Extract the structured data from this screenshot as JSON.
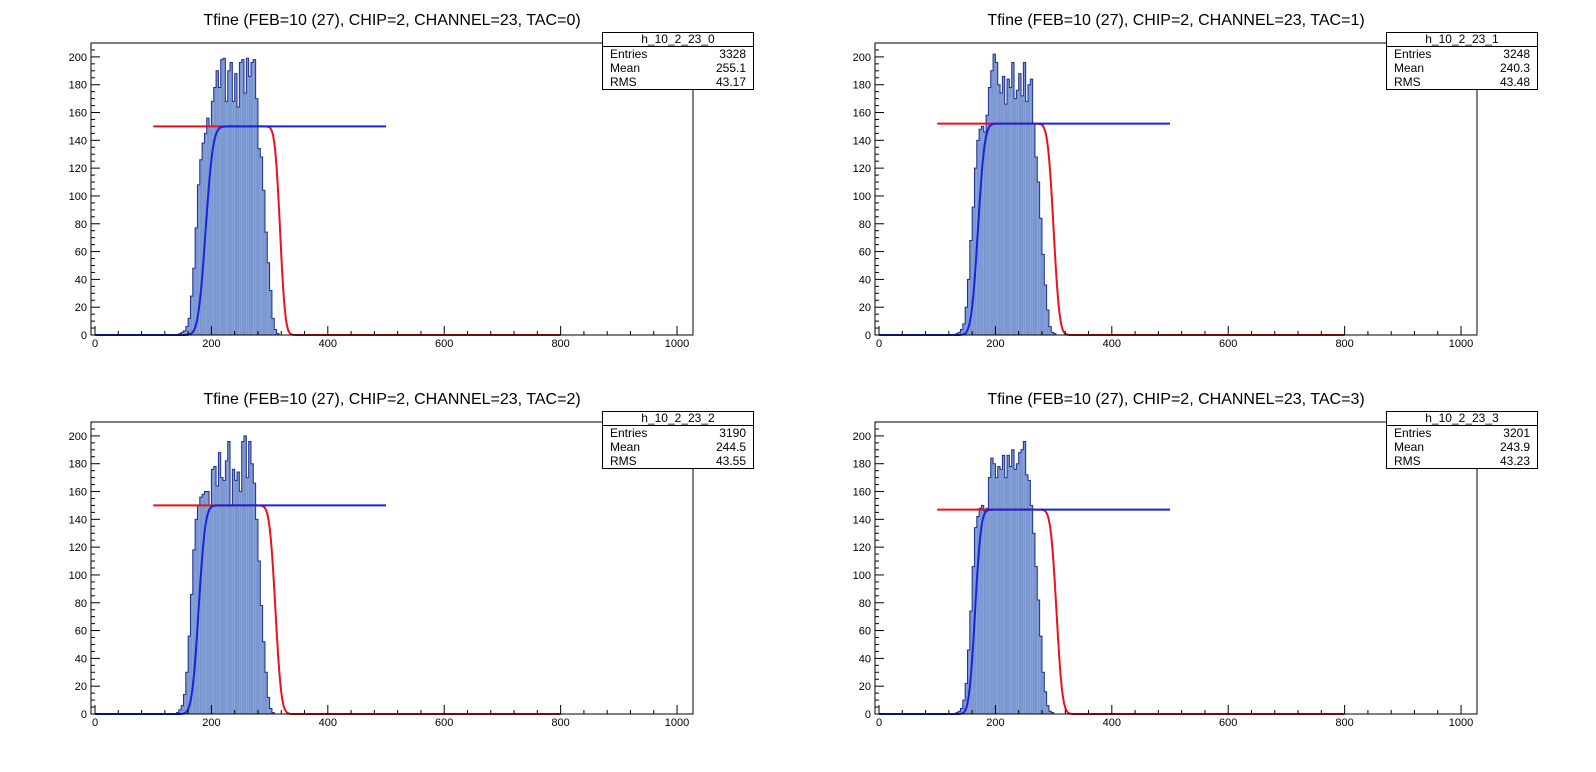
{
  "colors": {
    "hist_fill": "#7b97d1",
    "hist_line": "#1f2f8c",
    "fit_red": "#e8121a",
    "fit_blue": "#1624e0",
    "axis": "#000000"
  },
  "chart_data": [
    {
      "type": "bar",
      "title": "Tfine (FEB=10 (27), CHIP=2, CHANNEL=23, TAC=0)",
      "xlim": [
        0,
        1024
      ],
      "ylim": [
        0,
        210
      ],
      "xticks": [
        0,
        200,
        400,
        600,
        800,
        1000
      ],
      "yticks": [
        0,
        20,
        40,
        60,
        80,
        100,
        120,
        140,
        160,
        180,
        200
      ],
      "hist": {
        "x0": 144,
        "binwidth": 4,
        "values": [
          1,
          2,
          3,
          6,
          12,
          28,
          48,
          77,
          108,
          126,
          138,
          145,
          156,
          150,
          168,
          178,
          190,
          178,
          198,
          199,
          168,
          190,
          196,
          168,
          188,
          164,
          196,
          198,
          174,
          199,
          186,
          196,
          198,
          170,
          134,
          128,
          104,
          74,
          52,
          32,
          12,
          4,
          1
        ]
      },
      "fit_plateau": {
        "a": 150,
        "x_rise": 190,
        "x_fall": 318,
        "s_rise": 10,
        "s_fall": 7,
        "flat_from": 100,
        "flat_to": 500
      },
      "stats": {
        "name": "h_10_2_23_0",
        "entries_label": "Entries",
        "entries": "3328",
        "mean_label": "Mean",
        "mean": "255.1",
        "rms_label": "RMS",
        "rms": "43.17"
      }
    },
    {
      "type": "bar",
      "title": "Tfine (FEB=10 (27), CHIP=2, CHANNEL=23, TAC=1)",
      "xlim": [
        0,
        1024
      ],
      "ylim": [
        0,
        210
      ],
      "xticks": [
        0,
        200,
        400,
        600,
        800,
        1000
      ],
      "yticks": [
        0,
        20,
        40,
        60,
        80,
        100,
        120,
        140,
        160,
        180,
        200
      ],
      "hist": {
        "x0": 132,
        "binwidth": 4,
        "values": [
          1,
          2,
          4,
          8,
          20,
          40,
          68,
          92,
          120,
          140,
          148,
          150,
          146,
          158,
          178,
          190,
          202,
          196,
          180,
          174,
          186,
          166,
          184,
          178,
          196,
          170,
          176,
          188,
          172,
          196,
          168,
          180,
          184,
          152,
          128,
          110,
          84,
          58,
          36,
          18,
          6,
          2,
          1
        ]
      },
      "fit_plateau": {
        "a": 152,
        "x_rise": 170,
        "x_fall": 300,
        "s_rise": 9,
        "s_fall": 8,
        "flat_from": 100,
        "flat_to": 500
      },
      "stats": {
        "name": "h_10_2_23_1",
        "entries_label": "Entries",
        "entries": "3248",
        "mean_label": "Mean",
        "mean": "240.3",
        "rms_label": "RMS",
        "rms": "43.48"
      }
    },
    {
      "type": "bar",
      "title": "Tfine (FEB=10 (27), CHIP=2, CHANNEL=23, TAC=2)",
      "xlim": [
        0,
        1024
      ],
      "ylim": [
        0,
        210
      ],
      "xticks": [
        0,
        200,
        400,
        600,
        800,
        1000
      ],
      "yticks": [
        0,
        20,
        40,
        60,
        80,
        100,
        120,
        140,
        160,
        180,
        200
      ],
      "hist": {
        "x0": 140,
        "binwidth": 4,
        "values": [
          1,
          3,
          6,
          14,
          30,
          56,
          86,
          118,
          140,
          150,
          156,
          158,
          160,
          160,
          150,
          176,
          178,
          164,
          188,
          170,
          168,
          182,
          196,
          150,
          176,
          168,
          174,
          160,
          196,
          200,
          170,
          196,
          180,
          166,
          140,
          110,
          78,
          52,
          30,
          12,
          4,
          1
        ]
      },
      "fit_plateau": {
        "a": 150,
        "x_rise": 178,
        "x_fall": 310,
        "s_rise": 9,
        "s_fall": 8,
        "flat_from": 100,
        "flat_to": 500
      },
      "stats": {
        "name": "h_10_2_23_2",
        "entries_label": "Entries",
        "entries": "3190",
        "mean_label": "Mean",
        "mean": "244.5",
        "rms_label": "RMS",
        "rms": "43.55"
      }
    },
    {
      "type": "bar",
      "title": "Tfine (FEB=10 (27), CHIP=2, CHANNEL=23, TAC=3)",
      "xlim": [
        0,
        1024
      ],
      "ylim": [
        0,
        210
      ],
      "xticks": [
        0,
        200,
        400,
        600,
        800,
        1000
      ],
      "yticks": [
        0,
        20,
        40,
        60,
        80,
        100,
        120,
        140,
        160,
        180,
        200
      ],
      "hist": {
        "x0": 132,
        "binwidth": 4,
        "values": [
          1,
          2,
          4,
          10,
          22,
          46,
          74,
          106,
          134,
          142,
          148,
          150,
          146,
          148,
          170,
          184,
          180,
          170,
          178,
          176,
          186,
          170,
          186,
          178,
          190,
          176,
          180,
          188,
          190,
          196,
          172,
          168,
          150,
          130,
          106,
          82,
          56,
          30,
          16,
          6,
          2,
          1
        ]
      },
      "fit_plateau": {
        "a": 147,
        "x_rise": 165,
        "x_fall": 305,
        "s_rise": 8,
        "s_fall": 8,
        "flat_from": 100,
        "flat_to": 500
      },
      "stats": {
        "name": "h_10_2_23_3",
        "entries_label": "Entries",
        "entries": "3201",
        "mean_label": "Mean",
        "mean": "243.9",
        "rms_label": "RMS",
        "rms": "43.23"
      }
    }
  ]
}
